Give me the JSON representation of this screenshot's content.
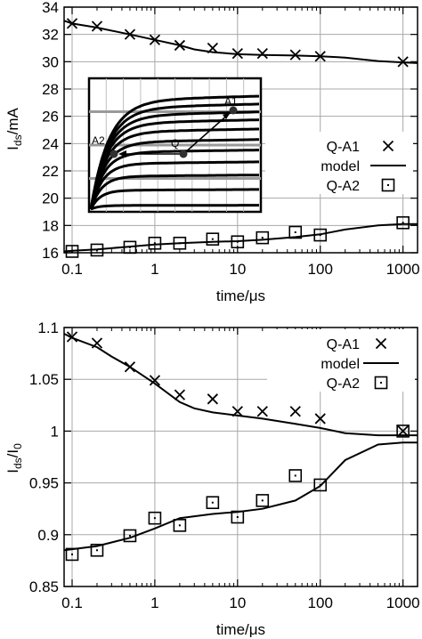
{
  "chart_data": [
    {
      "type": "scatter",
      "title": "",
      "xlabel": "time/μs",
      "ylabel_main": "I",
      "ylabel_sub": "ds",
      "ylabel_rest": "/mA",
      "xscale": "log",
      "xlim": [
        0.08,
        1500
      ],
      "ylim": [
        16,
        34
      ],
      "xticks": [
        0.1,
        1,
        10,
        100,
        1000
      ],
      "xtick_labels": [
        "0.1",
        "1",
        "10",
        "100",
        "1000"
      ],
      "yticks": [
        16,
        18,
        20,
        22,
        24,
        26,
        28,
        30,
        32,
        34
      ],
      "ytick_labels": [
        "16",
        "18",
        "20",
        "22",
        "24",
        "26",
        "28",
        "30",
        "32",
        "34"
      ],
      "grid": true,
      "legend_position": "right",
      "series": [
        {
          "name": "Q-A1",
          "marker": "x",
          "x": [
            0.1,
            0.2,
            0.5,
            1,
            2,
            5,
            10,
            20,
            50,
            100,
            1000
          ],
          "y": [
            32.8,
            32.6,
            32.0,
            31.6,
            31.2,
            31.0,
            30.6,
            30.6,
            30.5,
            30.4,
            30.0
          ]
        },
        {
          "name": "model",
          "marker": "line",
          "x": [
            0.08,
            0.1,
            0.2,
            0.5,
            1,
            2,
            3,
            5,
            10,
            20,
            50,
            100,
            200,
            500,
            1000,
            1500
          ],
          "y": [
            33.0,
            32.8,
            32.5,
            32.0,
            31.6,
            31.2,
            30.9,
            30.7,
            30.55,
            30.5,
            30.45,
            30.4,
            30.3,
            30.05,
            29.95,
            29.9
          ]
        },
        {
          "name": "Q-A2",
          "marker": "square",
          "x": [
            0.1,
            0.2,
            0.5,
            1,
            2,
            5,
            10,
            20,
            50,
            100,
            1000
          ],
          "y": [
            16.1,
            16.2,
            16.4,
            16.7,
            16.7,
            17.0,
            16.8,
            17.1,
            17.5,
            17.3,
            18.2
          ]
        },
        {
          "name": "model",
          "marker": "line",
          "x": [
            0.08,
            0.1,
            0.2,
            0.5,
            1,
            2,
            5,
            10,
            20,
            50,
            100,
            200,
            500,
            1000,
            1500
          ],
          "y": [
            16.1,
            16.15,
            16.25,
            16.45,
            16.6,
            16.7,
            16.8,
            16.85,
            16.95,
            17.15,
            17.35,
            17.7,
            18.0,
            18.1,
            18.1
          ]
        }
      ],
      "inset": {
        "labels": [
          "A1",
          "A2",
          "Q"
        ]
      }
    },
    {
      "type": "scatter",
      "title": "",
      "xlabel": "time/μs",
      "ylabel_main": "I",
      "ylabel_sub": "ds",
      "ylabel_rest": "/I",
      "ylabel_sub2": "0",
      "xscale": "log",
      "xlim": [
        0.08,
        1500
      ],
      "ylim": [
        0.85,
        1.1
      ],
      "xticks": [
        0.1,
        1,
        10,
        100,
        1000
      ],
      "xtick_labels": [
        "0.1",
        "1",
        "10",
        "100",
        "1000"
      ],
      "yticks": [
        0.85,
        0.9,
        0.95,
        1.0,
        1.05,
        1.1
      ],
      "ytick_labels": [
        "0.85",
        "0.9",
        "0.95",
        "1",
        "1.05",
        "1.1"
      ],
      "grid": true,
      "legend_position": "top-right",
      "series": [
        {
          "name": "Q-A1",
          "marker": "x",
          "x": [
            0.1,
            0.2,
            0.5,
            1,
            2,
            5,
            10,
            20,
            50,
            100,
            1000
          ],
          "y": [
            1.091,
            1.085,
            1.062,
            1.049,
            1.035,
            1.031,
            1.019,
            1.019,
            1.019,
            1.012,
            1.0
          ]
        },
        {
          "name": "model",
          "marker": "line",
          "x": [
            0.08,
            0.1,
            0.2,
            0.3,
            0.5,
            1,
            2,
            3,
            5,
            10,
            20,
            50,
            100,
            200,
            500,
            1000,
            1500
          ],
          "y": [
            1.094,
            1.09,
            1.081,
            1.072,
            1.062,
            1.046,
            1.028,
            1.022,
            1.018,
            1.015,
            1.012,
            1.007,
            1.003,
            0.998,
            0.996,
            0.996,
            0.996
          ]
        },
        {
          "name": "Q-A2",
          "marker": "square",
          "x": [
            0.1,
            0.2,
            0.5,
            1,
            2,
            5,
            10,
            20,
            50,
            100,
            1000
          ],
          "y": [
            0.881,
            0.885,
            0.899,
            0.916,
            0.909,
            0.931,
            0.917,
            0.933,
            0.957,
            0.948,
            1.0
          ]
        },
        {
          "name": "model",
          "marker": "line",
          "x": [
            0.08,
            0.1,
            0.2,
            0.5,
            1,
            2,
            5,
            10,
            20,
            50,
            100,
            200,
            500,
            1000,
            1500
          ],
          "y": [
            0.885,
            0.886,
            0.889,
            0.897,
            0.906,
            0.916,
            0.92,
            0.922,
            0.925,
            0.933,
            0.947,
            0.972,
            0.987,
            0.989,
            0.989
          ]
        }
      ]
    }
  ]
}
